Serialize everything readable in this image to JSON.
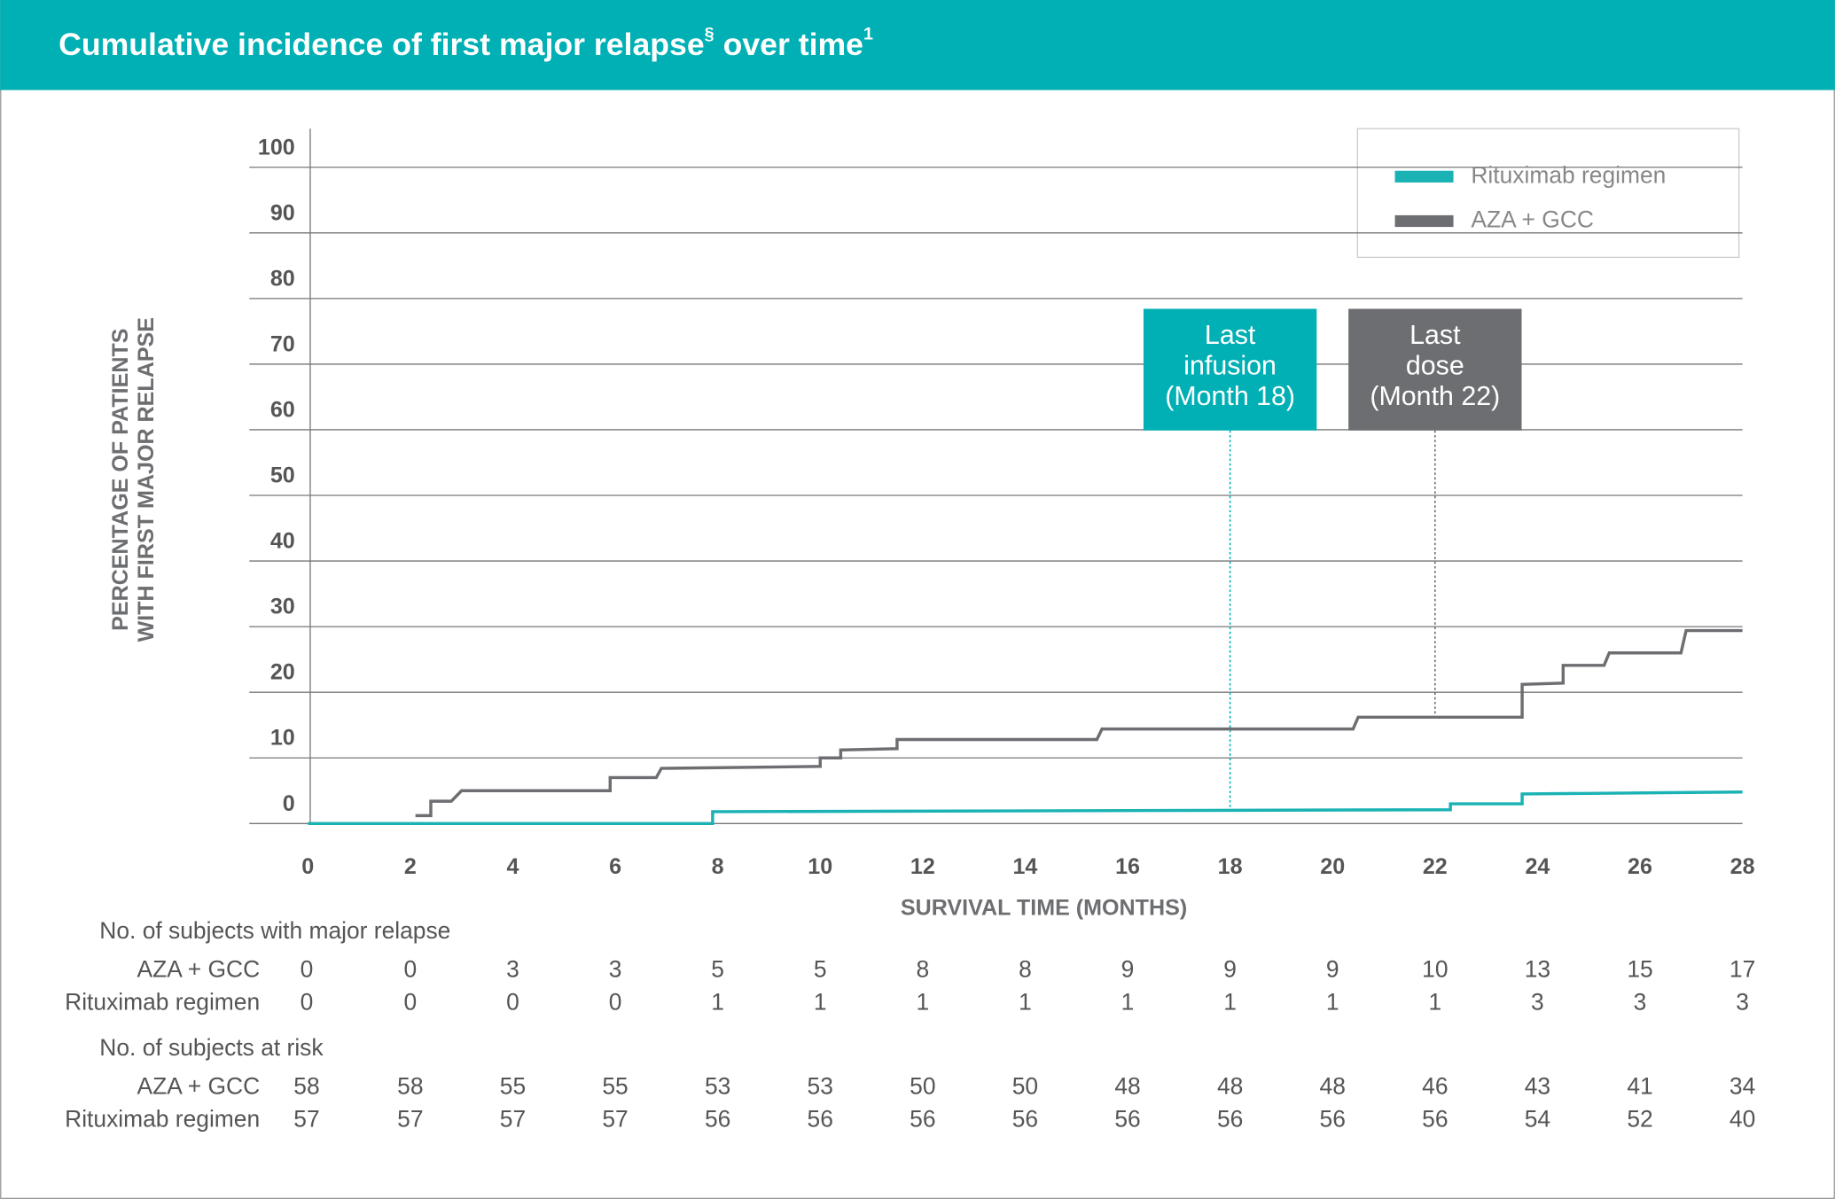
{
  "chart_data": {
    "type": "line",
    "title": "Cumulative incidence of first major relapse",
    "title_sup": "§",
    "title_end": " over time",
    "title_ref": "1",
    "ylabel": [
      "PERCENTAGE OF PATIENTS",
      "WITH FIRST MAJOR RELAPSE"
    ],
    "xlabel": "SURVIVAL TIME (MONTHS)",
    "xlim": [
      0,
      28
    ],
    "xticks": [
      0,
      2,
      4,
      6,
      8,
      10,
      12,
      14,
      16,
      18,
      20,
      22,
      24,
      26,
      28
    ],
    "ylim": [
      0,
      100
    ],
    "yticks": [
      0,
      10,
      20,
      30,
      40,
      50,
      60,
      70,
      80,
      90,
      100
    ],
    "grid": true,
    "legend": "upper right",
    "series": [
      {
        "name": "Rituximab regimen",
        "color": "#1ab2b4",
        "x": [
          0,
          7.9,
          7.9,
          22.3,
          22.3,
          23.7,
          23.7,
          28
        ],
        "values": [
          0,
          0,
          1.8,
          2.1,
          3.0,
          3.0,
          4.5,
          4.8
        ]
      },
      {
        "name": "AZA + GCC",
        "color": "#6d6e71",
        "x": [
          2.1,
          2.4,
          2.4,
          2.8,
          3.0,
          5.9,
          5.9,
          6.8,
          6.9,
          10.0,
          10.0,
          10.4,
          10.4,
          11.5,
          11.5,
          15.4,
          15.5,
          20.4,
          20.5,
          23.7,
          23.7,
          24.5,
          24.5,
          25.3,
          25.4,
          26.8,
          26.9,
          28
        ],
        "values": [
          1.2,
          1.2,
          3.4,
          3.4,
          5.0,
          5.0,
          7.0,
          7.0,
          8.4,
          8.7,
          10.0,
          10.0,
          11.2,
          11.4,
          12.8,
          12.8,
          14.4,
          14.4,
          16.2,
          16.2,
          21.2,
          21.4,
          24.1,
          24.1,
          26.0,
          26.0,
          29.4,
          29.4
        ]
      }
    ],
    "annotations": [
      {
        "text": [
          "Last",
          "infusion",
          "(Month 18)"
        ],
        "x": 18,
        "color": "#00b0b4"
      },
      {
        "text": [
          "Last",
          "dose",
          "(Month 22)"
        ],
        "x": 22,
        "color": "#6d6e71"
      }
    ]
  },
  "risk_tables": [
    {
      "title": "No. of subjects with major relapse",
      "rows": [
        {
          "label": "AZA + GCC",
          "values": [
            0,
            0,
            3,
            3,
            5,
            5,
            8,
            8,
            9,
            9,
            9,
            10,
            13,
            15,
            17
          ]
        },
        {
          "label": "Rituximab regimen",
          "values": [
            0,
            0,
            0,
            0,
            1,
            1,
            1,
            1,
            1,
            1,
            1,
            1,
            3,
            3,
            3
          ]
        }
      ]
    },
    {
      "title": "No. of subjects at risk",
      "rows": [
        {
          "label": "AZA + GCC",
          "values": [
            58,
            58,
            55,
            55,
            53,
            53,
            50,
            50,
            48,
            48,
            48,
            46,
            43,
            41,
            34
          ]
        },
        {
          "label": "Rituximab regimen",
          "values": [
            57,
            57,
            57,
            57,
            56,
            56,
            56,
            56,
            56,
            56,
            56,
            56,
            54,
            52,
            40
          ]
        }
      ]
    }
  ]
}
